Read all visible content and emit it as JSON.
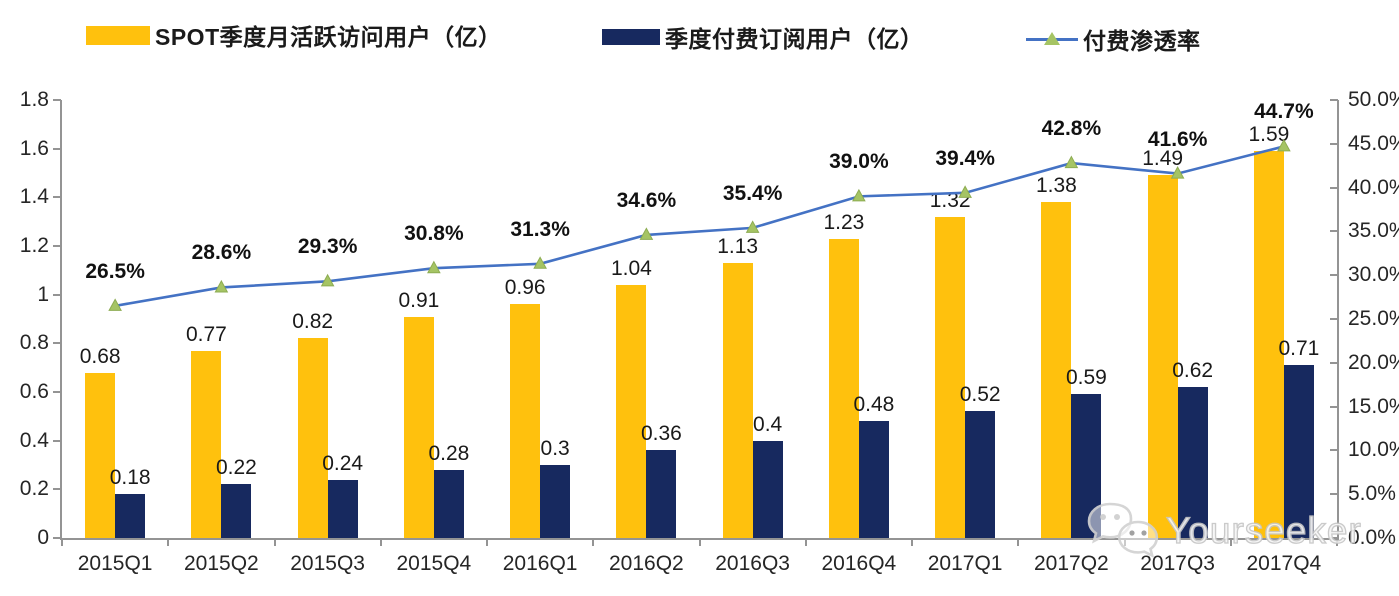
{
  "legend": {
    "items": [
      {
        "label": "SPOT季度月活跃访问用户（亿）",
        "swatch": "bar",
        "color": "#FFC10D"
      },
      {
        "label": "季度付费订阅用户（亿）",
        "swatch": "bar",
        "color": "#17295F"
      },
      {
        "label": "付费渗透率",
        "swatch": "line",
        "color": "#4472C4",
        "marker_color": "#A5C464"
      }
    ]
  },
  "chart_data": {
    "type": "bar+line combo",
    "categories": [
      "2015Q1",
      "2015Q2",
      "2015Q3",
      "2015Q4",
      "2016Q1",
      "2016Q2",
      "2016Q3",
      "2016Q4",
      "2017Q1",
      "2017Q2",
      "2017Q3",
      "2017Q4"
    ],
    "series": [
      {
        "name": "SPOT季度月活跃访问用户（亿）",
        "type": "bar",
        "axis": "left",
        "color": "#FFC10D",
        "values": [
          0.68,
          0.77,
          0.82,
          0.91,
          0.96,
          1.04,
          1.13,
          1.23,
          1.32,
          1.38,
          1.49,
          1.59
        ],
        "labels": [
          "0.68",
          "0.77",
          "0.82",
          "0.91",
          "0.96",
          "1.04",
          "1.13",
          "1.23",
          "1.32",
          "1.38",
          "1.49",
          "1.59"
        ]
      },
      {
        "name": "季度付费订阅用户（亿）",
        "type": "bar",
        "axis": "left",
        "color": "#17295F",
        "values": [
          0.18,
          0.22,
          0.24,
          0.28,
          0.3,
          0.36,
          0.4,
          0.48,
          0.52,
          0.59,
          0.62,
          0.71
        ],
        "labels": [
          "0.18",
          "0.22",
          "0.24",
          "0.28",
          "0.3",
          "0.36",
          "0.4",
          "0.48",
          "0.52",
          "0.59",
          "0.62",
          "0.71"
        ]
      },
      {
        "name": "付费渗透率",
        "type": "line",
        "axis": "right",
        "color": "#4472C4",
        "marker": "triangle",
        "marker_color": "#A5C464",
        "values": [
          26.5,
          28.6,
          29.3,
          30.8,
          31.3,
          34.6,
          35.4,
          39.0,
          39.4,
          42.8,
          41.6,
          44.7
        ],
        "labels": [
          "26.5%",
          "28.6%",
          "29.3%",
          "30.8%",
          "31.3%",
          "34.6%",
          "35.4%",
          "39.0%",
          "39.4%",
          "42.8%",
          "41.6%",
          "44.7%"
        ]
      }
    ],
    "left_axis": {
      "min": 0,
      "max": 1.8,
      "step": 0.2,
      "ticks": [
        "0",
        "0.2",
        "0.4",
        "0.6",
        "0.8",
        "1",
        "1.2",
        "1.4",
        "1.6",
        "1.8"
      ]
    },
    "right_axis": {
      "min": 0,
      "max": 50,
      "step": 5,
      "ticks": [
        "0.0%",
        "5.0%",
        "10.0%",
        "15.0%",
        "20.0%",
        "25.0%",
        "30.0%",
        "35.0%",
        "40.0%",
        "45.0%",
        "50.0%"
      ]
    },
    "grid": false,
    "legend_position": "top"
  },
  "watermark": {
    "text": "Yourseeker",
    "icon": "wechat-icon"
  }
}
